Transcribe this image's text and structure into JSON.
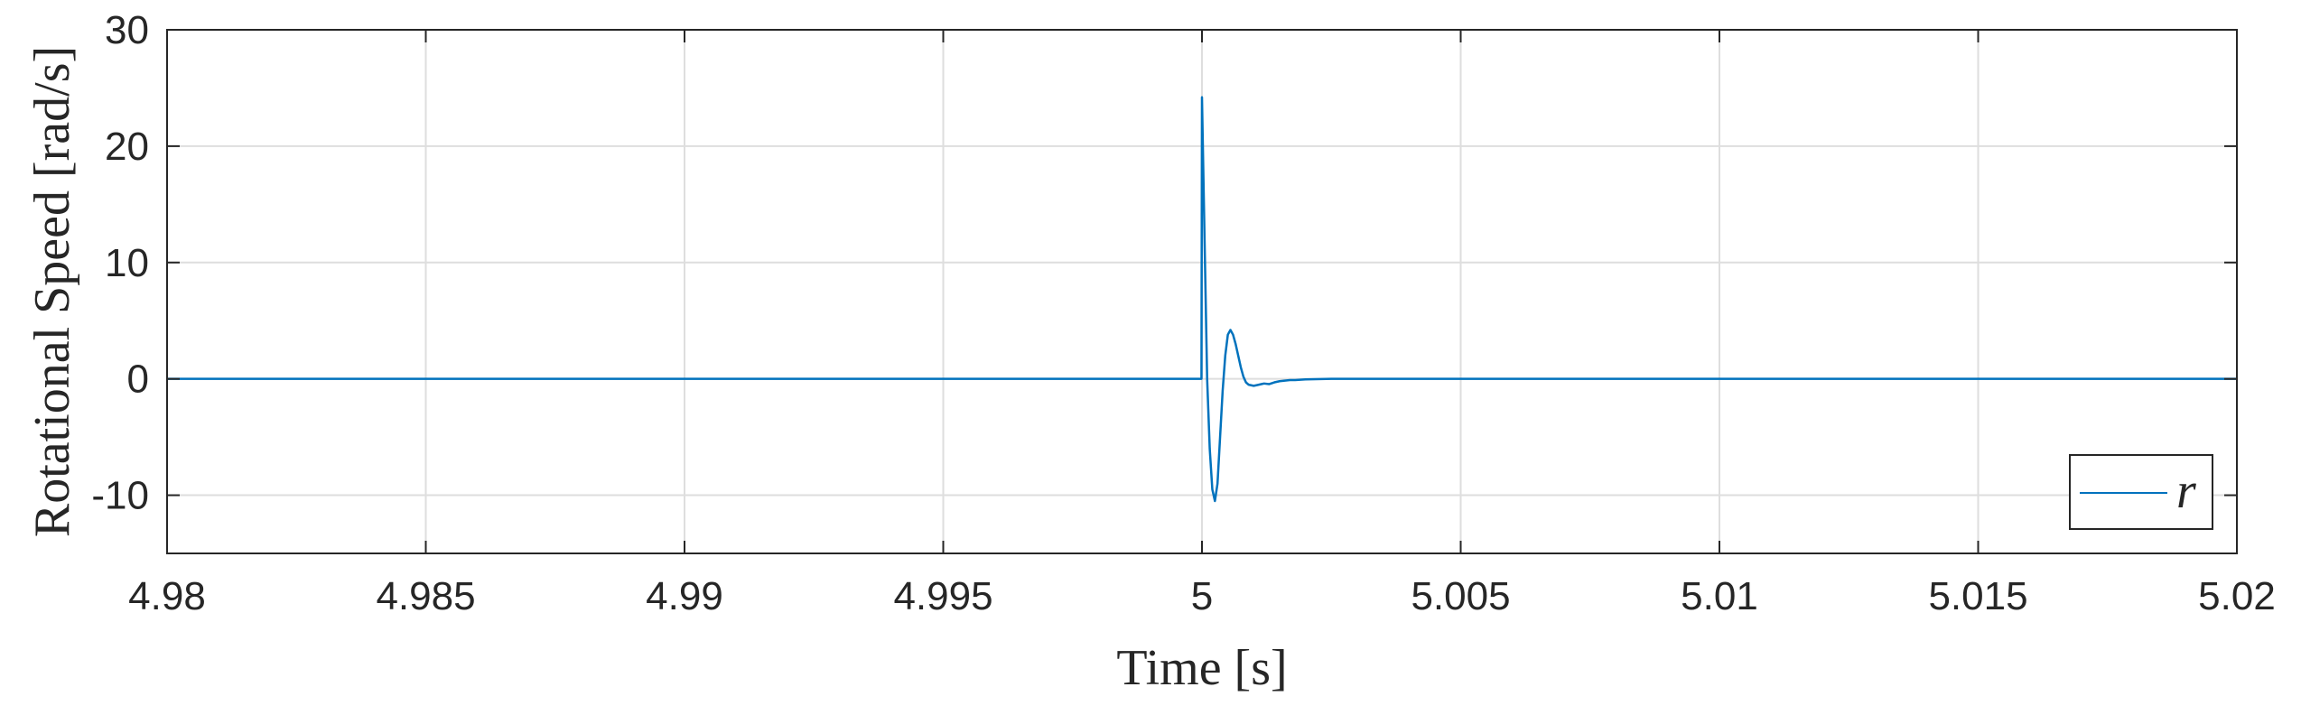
{
  "chart_data": {
    "type": "line",
    "title": "",
    "xlabel": "Time [s]",
    "ylabel": "Rotational Speed [rad/s]",
    "xlim": [
      4.98,
      5.02
    ],
    "ylim": [
      -15,
      30
    ],
    "xticks": [
      4.98,
      4.985,
      4.99,
      4.995,
      5,
      5.005,
      5.01,
      5.015,
      5.02
    ],
    "xtick_labels": [
      "4.98",
      "4.985",
      "4.99",
      "4.995",
      "5",
      "5.005",
      "5.01",
      "5.015",
      "5.02"
    ],
    "yticks": [
      -10,
      0,
      10,
      20,
      30
    ],
    "ytick_labels": [
      "-10",
      "0",
      "10",
      "20",
      "30"
    ],
    "grid": true,
    "legend_position": "bottom-right",
    "series": [
      {
        "name": "r",
        "color": "#0072BD",
        "x": [
          4.98,
          4.99999,
          5.0,
          5.00005,
          5.0001,
          5.00015,
          5.0002,
          5.00025,
          5.0003,
          5.00035,
          5.0004,
          5.00045,
          5.0005,
          5.00055,
          5.0006,
          5.00065,
          5.0007,
          5.00075,
          5.0008,
          5.00085,
          5.0009,
          5.001,
          5.0011,
          5.0012,
          5.0013,
          5.0014,
          5.0015,
          5.0016,
          5.0017,
          5.0018,
          5.002,
          5.0025,
          5.003,
          5.02
        ],
        "y": [
          0,
          0,
          24.2,
          12,
          0,
          -6,
          -9.5,
          -10.5,
          -9,
          -5,
          -1,
          2,
          3.8,
          4.2,
          3.8,
          3,
          2,
          1,
          0.2,
          -0.3,
          -0.5,
          -0.6,
          -0.5,
          -0.4,
          -0.45,
          -0.3,
          -0.2,
          -0.15,
          -0.1,
          -0.1,
          -0.05,
          0,
          0,
          0
        ]
      }
    ]
  }
}
